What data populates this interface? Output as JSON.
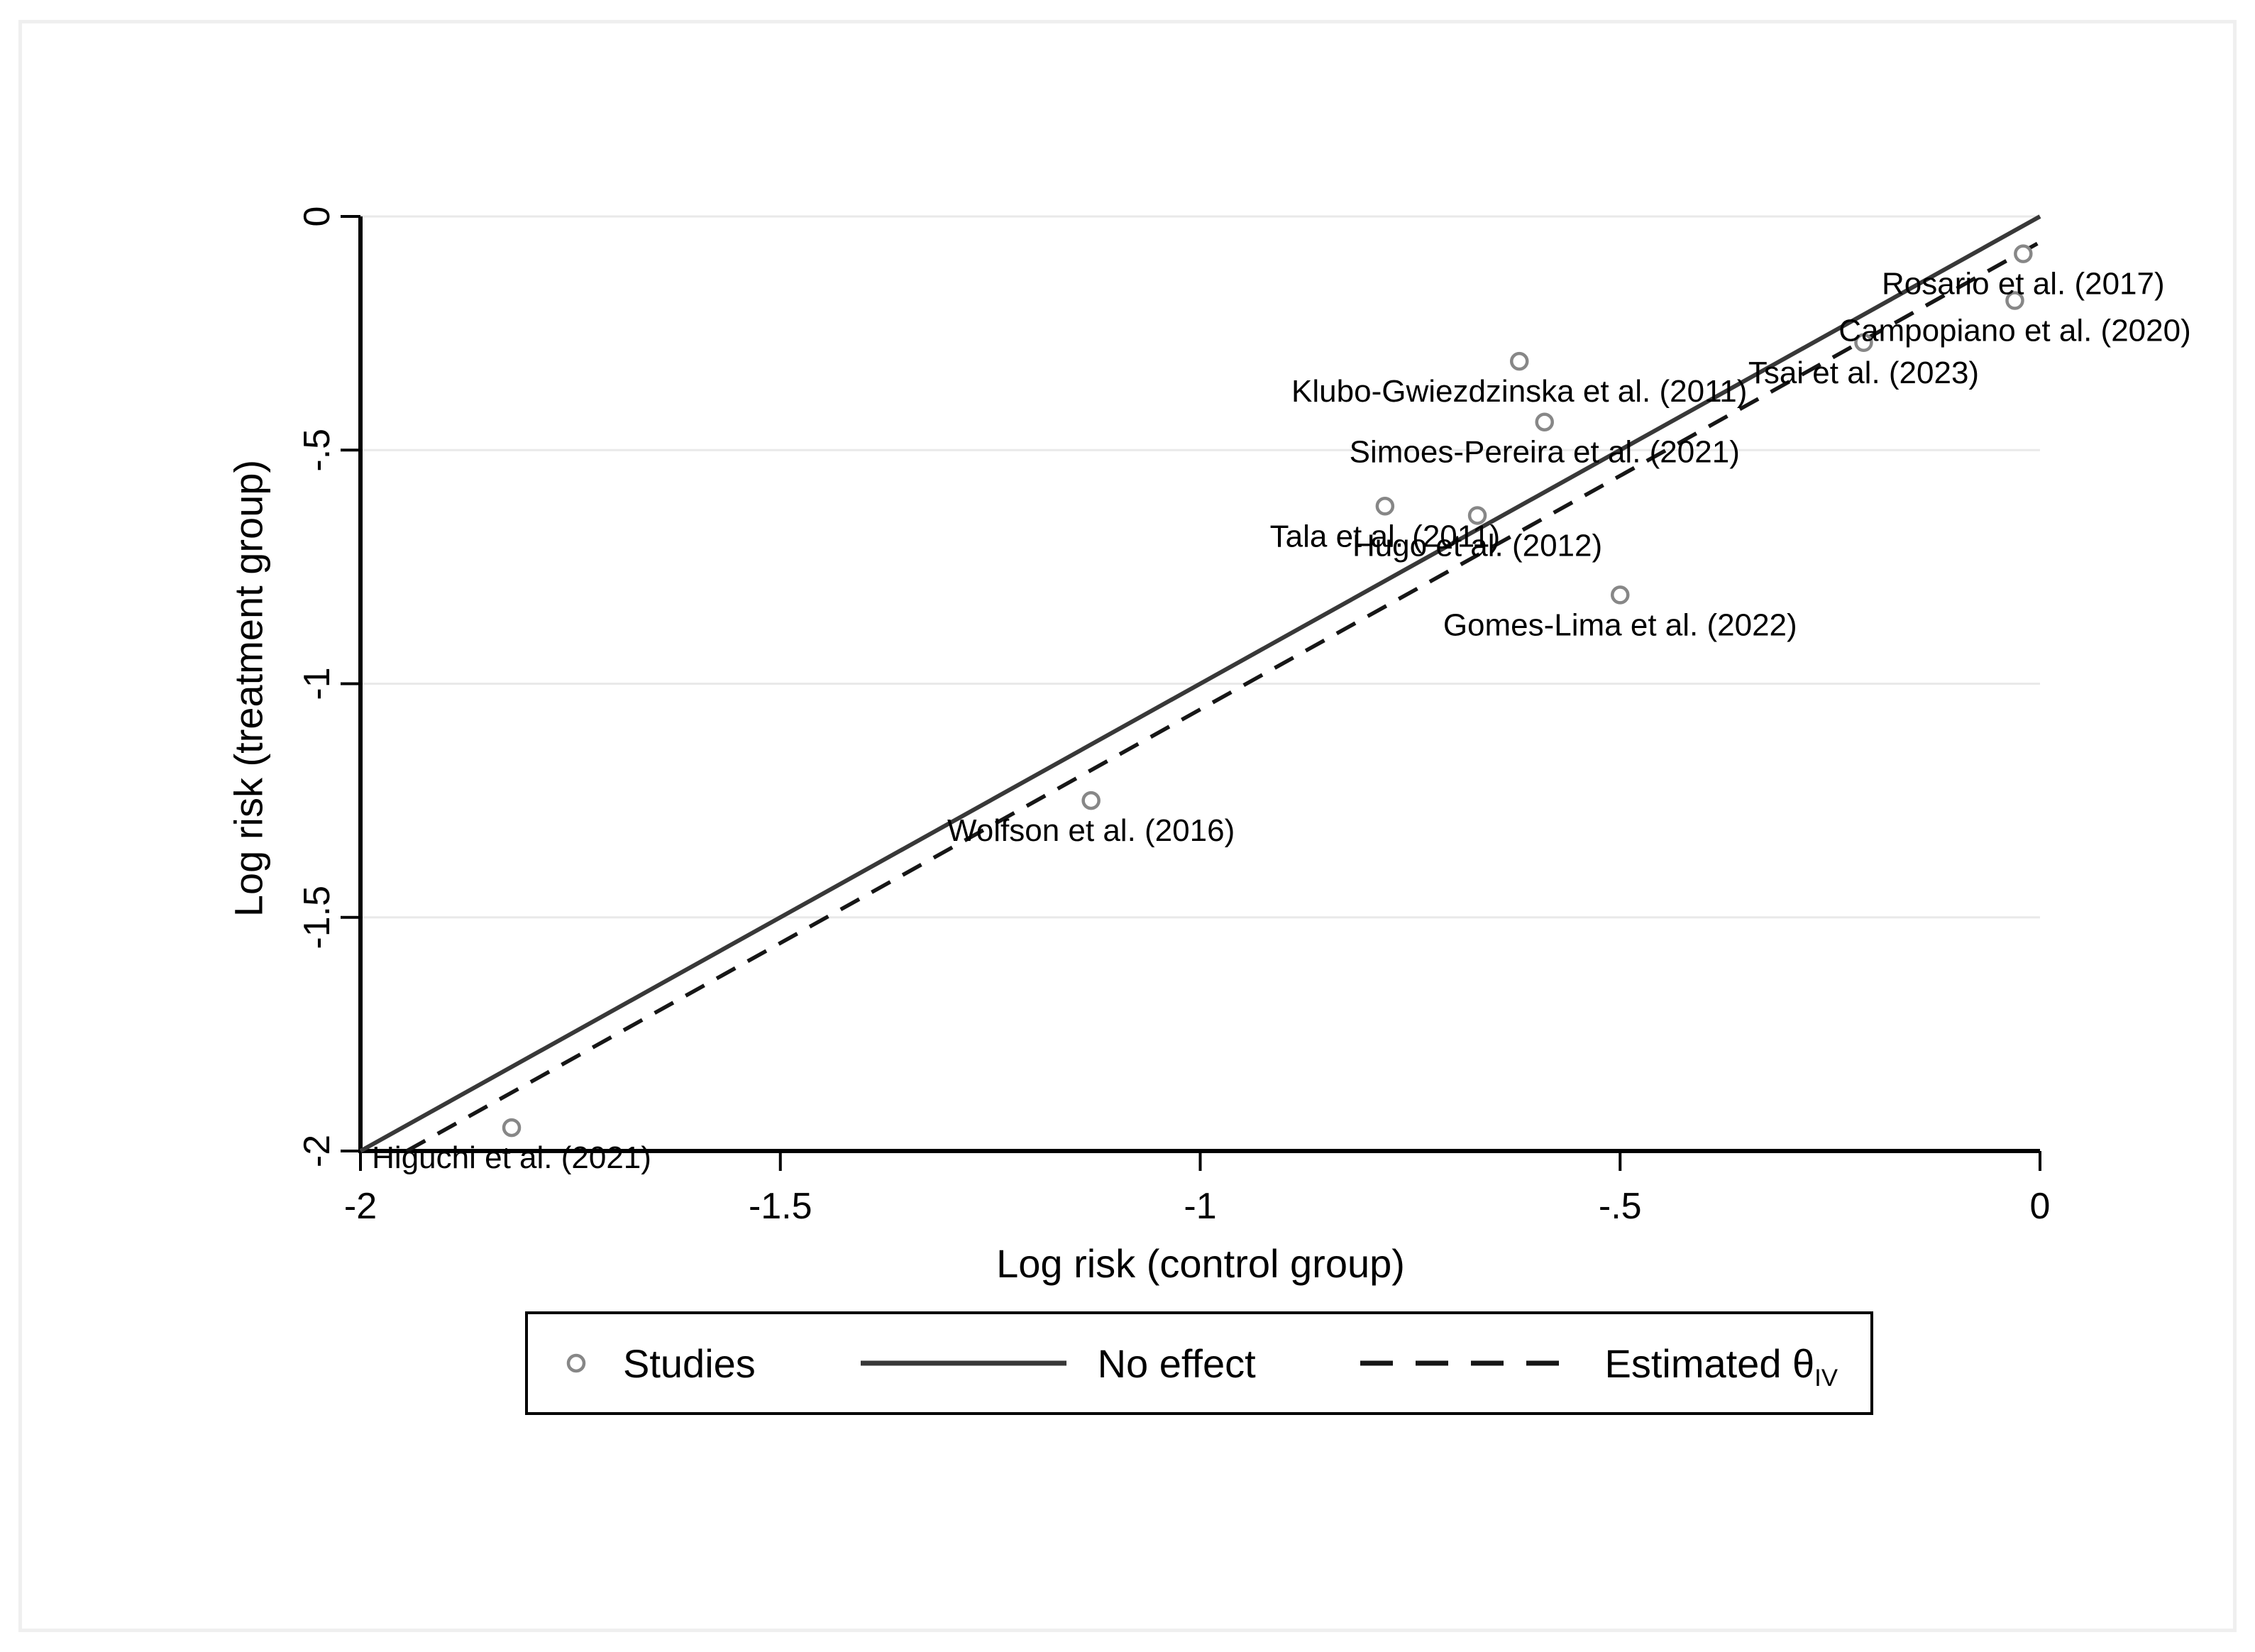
{
  "chart_data": {
    "type": "scatter",
    "title": "",
    "xlabel": "Log risk (control group)",
    "ylabel": "Log risk (treatment group)",
    "xlim": [
      -2,
      0
    ],
    "ylim": [
      -2,
      0
    ],
    "grid": "horizontal-only",
    "x_ticks": [
      {
        "value": -2,
        "label": "-2"
      },
      {
        "value": -1.5,
        "label": "-1.5"
      },
      {
        "value": -1,
        "label": "-1"
      },
      {
        "value": -0.5,
        "label": "-.5"
      },
      {
        "value": 0,
        "label": "0"
      }
    ],
    "y_ticks": [
      {
        "value": 0,
        "label": "0"
      },
      {
        "value": -0.5,
        "label": "-.5"
      },
      {
        "value": -1,
        "label": "-1"
      },
      {
        "value": -1.5,
        "label": "-1.5"
      },
      {
        "value": -2,
        "label": "-2"
      }
    ],
    "grid_y_values": [
      0,
      -0.5,
      -1,
      -1.5
    ],
    "points": [
      {
        "label": "Rosario et al. (2017)",
        "x": -0.02,
        "y": -0.08
      },
      {
        "label": "Campopiano et al. (2020)",
        "x": -0.03,
        "y": -0.18
      },
      {
        "label": "Tsai et al. (2023)",
        "x": -0.21,
        "y": -0.27
      },
      {
        "label": "Klubo-Gwiezdzinska et al. (2011)",
        "x": -0.62,
        "y": -0.31
      },
      {
        "label": "Simoes-Pereira et al. (2021)",
        "x": -0.59,
        "y": -0.44
      },
      {
        "label": "Tala et al. (2011)",
        "x": -0.78,
        "y": -0.62
      },
      {
        "label": "Hugo et al. (2012)",
        "x": -0.67,
        "y": -0.64
      },
      {
        "label": "Gomes-Lima et al. (2022)",
        "x": -0.5,
        "y": -0.81
      },
      {
        "label": "Wolfson et al. (2016)",
        "x": -1.13,
        "y": -1.25
      },
      {
        "label": "Higuchi et al. (2021)",
        "x": -1.82,
        "y": -1.95
      }
    ],
    "lines": {
      "no_effect": {
        "name": "No effect",
        "style": "solid",
        "points": [
          [
            -2,
            -2
          ],
          [
            0,
            0
          ]
        ]
      },
      "estimated": {
        "name": "Estimated θIV",
        "style": "dashed",
        "points": [
          [
            -1.945,
            -2
          ],
          [
            0,
            -0.055
          ]
        ]
      }
    },
    "colors": {
      "marker": "#878787",
      "solid_line": "#383838",
      "dashed_line": "#161616",
      "grid": "#e9e9e9",
      "axis": "#000000",
      "text": "#000000",
      "frame": "#efefef"
    }
  },
  "legend": {
    "items": [
      {
        "symbol": "circle",
        "label": "Studies"
      },
      {
        "symbol": "solid-line",
        "label": "No effect"
      },
      {
        "symbol": "dashed-line",
        "label": "Estimated θ",
        "subscript": "IV"
      }
    ]
  }
}
